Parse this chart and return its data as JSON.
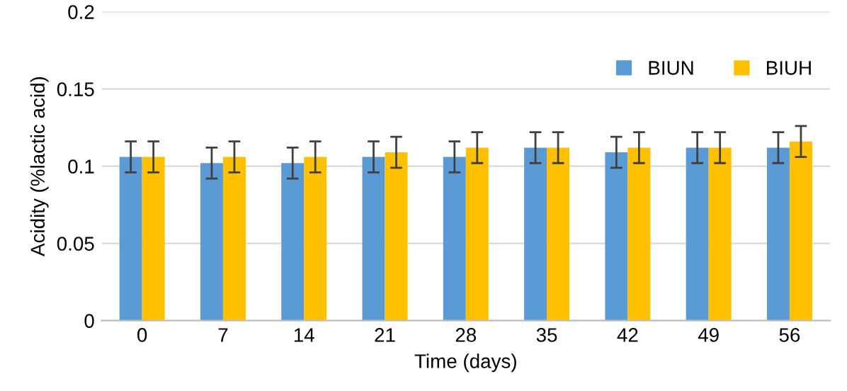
{
  "chart_data": {
    "type": "bar",
    "xlabel": "Time (days)",
    "ylabel": "Acidity (%lactic acid)",
    "categories": [
      "0",
      "7",
      "14",
      "21",
      "28",
      "35",
      "42",
      "49",
      "56"
    ],
    "series": [
      {
        "name": "BIUN",
        "color": "#5b9bd5",
        "values": [
          0.106,
          0.102,
          0.102,
          0.106,
          0.106,
          0.112,
          0.109,
          0.112,
          0.112
        ],
        "errors": [
          0.01,
          0.01,
          0.01,
          0.01,
          0.01,
          0.01,
          0.01,
          0.01,
          0.01
        ]
      },
      {
        "name": "BIUH",
        "color": "#ffc000",
        "values": [
          0.106,
          0.106,
          0.106,
          0.109,
          0.112,
          0.112,
          0.112,
          0.112,
          0.116
        ],
        "errors": [
          0.01,
          0.01,
          0.01,
          0.01,
          0.01,
          0.01,
          0.01,
          0.01,
          0.01
        ]
      }
    ],
    "ylim": [
      0,
      0.2
    ],
    "yticks": [
      0,
      0.05,
      0.1,
      0.15,
      0.2
    ],
    "grid": "y",
    "legend": "top right"
  }
}
